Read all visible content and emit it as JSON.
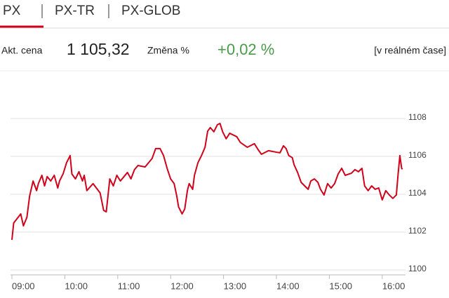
{
  "tabs": [
    "PX",
    "PX-TR",
    "PX-GLOB"
  ],
  "quote": {
    "price_label": "Akt. cena",
    "price": "1 105,32",
    "change_label": "Změna %",
    "change": "+0,02 %",
    "realtime": "[v reálném čase]"
  },
  "chart_data": {
    "type": "line",
    "x": [
      "09:00",
      "09:02",
      "09:10",
      "09:13",
      "09:17",
      "09:20",
      "09:24",
      "09:28",
      "09:30",
      "09:34",
      "09:37",
      "09:40",
      "09:44",
      "09:48",
      "09:52",
      "09:54",
      "09:58",
      "10:02",
      "10:06",
      "10:08",
      "10:12",
      "10:16",
      "10:20",
      "10:22",
      "10:25",
      "10:32",
      "10:40",
      "10:44",
      "10:47",
      "10:51",
      "10:55",
      "10:59",
      "11:03",
      "11:11",
      "11:15",
      "11:19",
      "11:23",
      "11:31",
      "11:39",
      "11:43",
      "11:48",
      "11:52",
      "11:56",
      "12:00",
      "12:04",
      "12:07",
      "12:09",
      "12:13",
      "12:16",
      "12:19",
      "12:21",
      "12:25",
      "12:27",
      "12:31",
      "12:35",
      "12:39",
      "12:42",
      "12:45",
      "12:49",
      "12:53",
      "12:56",
      "12:59",
      "13:03",
      "13:07",
      "13:15",
      "13:19",
      "13:27",
      "13:35",
      "13:39",
      "13:43",
      "13:51",
      "14:00",
      "14:04",
      "14:08",
      "14:11",
      "14:14",
      "14:18",
      "14:20",
      "14:24",
      "14:28",
      "14:32",
      "14:36",
      "14:39",
      "14:43",
      "14:47",
      "14:50",
      "14:54",
      "14:58",
      "15:02",
      "15:06",
      "15:10",
      "15:14",
      "15:18",
      "15:25",
      "15:29",
      "15:33",
      "15:37",
      "15:40",
      "15:44",
      "15:48",
      "15:52",
      "15:56",
      "16:00",
      "16:04",
      "16:08",
      "16:12",
      "16:16",
      "16:18",
      "16:20",
      "16:22",
      "16:23"
    ],
    "series": [
      {
        "color": "#d0021b",
        "values": [
          1101.59,
          1102.48,
          1102.96,
          1102.33,
          1102.78,
          1103.89,
          1104.7,
          1104.19,
          1104.56,
          1105,
          1104.44,
          1104.93,
          1104.7,
          1105,
          1104.33,
          1104.7,
          1105.07,
          1105.67,
          1106.04,
          1105.07,
          1104.81,
          1105.19,
          1104.7,
          1105,
          1104.19,
          1104.56,
          1104.07,
          1103.15,
          1103.07,
          1104.81,
          1104.44,
          1105,
          1104.7,
          1105.15,
          1104.81,
          1105.3,
          1105.52,
          1105.44,
          1105.89,
          1106.41,
          1106.41,
          1106.04,
          1105.37,
          1104.81,
          1104.56,
          1103.89,
          1103.33,
          1102.96,
          1103.22,
          1104.19,
          1104.56,
          1104.26,
          1105,
          1105.67,
          1106.04,
          1106.48,
          1107.33,
          1107.52,
          1107.3,
          1107.67,
          1107.74,
          1107.3,
          1106.93,
          1107.22,
          1107.04,
          1106.74,
          1106.48,
          1106.67,
          1106.37,
          1106.11,
          1106.3,
          1106.22,
          1106.19,
          1106.56,
          1106.41,
          1106.04,
          1105.93,
          1105.56,
          1105.15,
          1104.63,
          1104.44,
          1104.26,
          1104.7,
          1104.81,
          1104.63,
          1104.26,
          1103.96,
          1104.56,
          1104.33,
          1104.56,
          1105.07,
          1105.37,
          1105,
          1105.11,
          1105.3,
          1105.19,
          1105.37,
          1104.44,
          1104.19,
          1104.44,
          1104.26,
          1104.33,
          1103.7,
          1104.19,
          1103.96,
          1103.78,
          1103.96,
          1105.07,
          1106.04,
          1105.37,
          1105.32
        ]
      }
    ],
    "xlim": [
      "09:00",
      "16:24"
    ],
    "xticks": [
      "09:00",
      "10:00",
      "11:00",
      "12:00",
      "13:00",
      "14:00",
      "15:00",
      "16:00"
    ],
    "ylim": [
      1100,
      1109
    ],
    "yticks": [
      1100,
      1102,
      1104,
      1106,
      1108
    ],
    "grid": true
  }
}
